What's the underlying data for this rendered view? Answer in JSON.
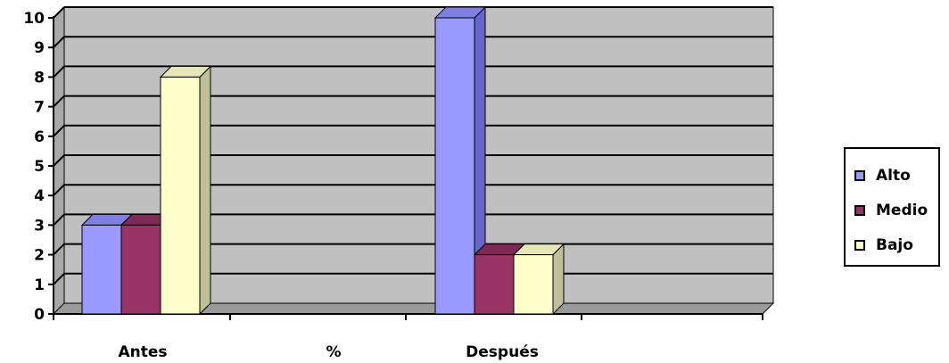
{
  "chart_data": {
    "type": "bar",
    "style": "3d-clustered-column",
    "categories": [
      "Antes",
      "%",
      "Después"
    ],
    "series": [
      {
        "name": "Alto",
        "values": [
          3,
          null,
          10
        ],
        "color": "#9999ff",
        "side": "#6666cc",
        "top": "#7f7fe0"
      },
      {
        "name": "Medio",
        "values": [
          3,
          null,
          2
        ],
        "color": "#993366",
        "side": "#6e2449",
        "top": "#7e2a55"
      },
      {
        "name": "Bajo",
        "values": [
          8,
          null,
          2
        ],
        "color": "#ffffcc",
        "side": "#bfbf99",
        "top": "#e6e6b8"
      }
    ],
    "ylim": [
      0,
      10
    ],
    "yticks": [
      0,
      1,
      2,
      3,
      4,
      5,
      6,
      7,
      8,
      9,
      10
    ],
    "grid": true,
    "wall_color": "#c0c0c0",
    "legend": "right"
  }
}
